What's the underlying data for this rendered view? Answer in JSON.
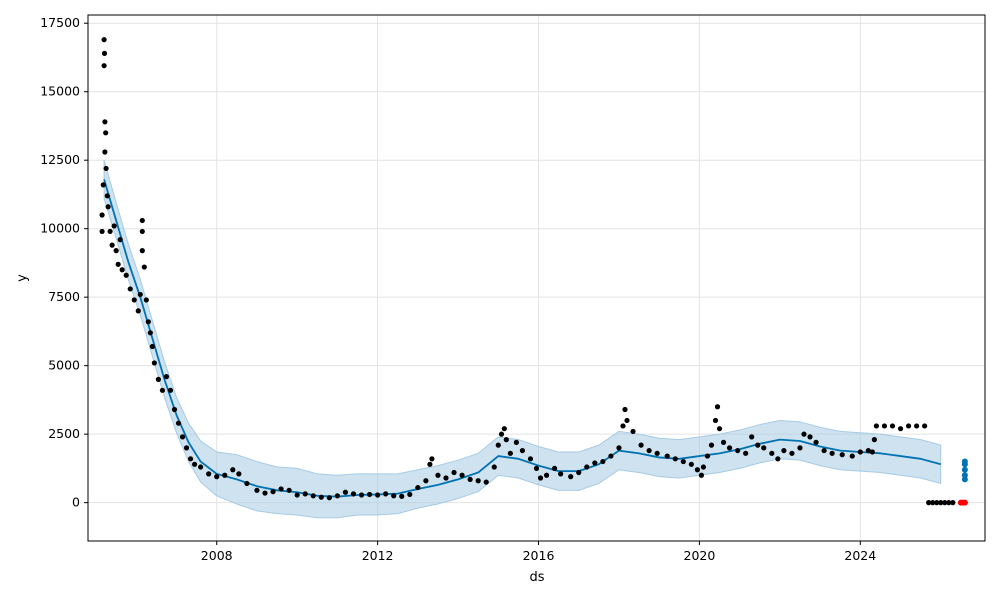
{
  "chart_data": {
    "type": "line",
    "title": "",
    "xlabel": "ds",
    "ylabel": "y",
    "xlim": [
      2004.8,
      2027.1
    ],
    "ylim": [
      -1400,
      17800
    ],
    "x_ticks": [
      2008,
      2012,
      2016,
      2020,
      2024
    ],
    "x_tick_labels": [
      "2008",
      "2012",
      "2016",
      "2020",
      "2024"
    ],
    "y_ticks": [
      0,
      2500,
      5000,
      7500,
      10000,
      12500,
      15000,
      17500
    ],
    "y_tick_labels": [
      "0",
      "2500",
      "5000",
      "7500",
      "10000",
      "12500",
      "15000",
      "17500"
    ],
    "grid": true,
    "colors": {
      "forecast": "#0072B2",
      "band": "#A6CBE3",
      "points": "#000000",
      "highlight": "#FF0000"
    },
    "series": [
      {
        "kind": "forecast-line",
        "points": [
          [
            2005.2,
            11800
          ],
          [
            2005.5,
            10300
          ],
          [
            2005.8,
            8800
          ],
          [
            2006.1,
            7500
          ],
          [
            2006.4,
            6000
          ],
          [
            2006.7,
            4500
          ],
          [
            2007.0,
            3200
          ],
          [
            2007.3,
            2200
          ],
          [
            2007.6,
            1500
          ],
          [
            2008.0,
            1050
          ],
          [
            2008.5,
            850
          ],
          [
            2009.0,
            600
          ],
          [
            2009.5,
            450
          ],
          [
            2010.0,
            380
          ],
          [
            2010.5,
            250
          ],
          [
            2011.0,
            220
          ],
          [
            2011.5,
            280
          ],
          [
            2012.0,
            300
          ],
          [
            2012.5,
            330
          ],
          [
            2013.0,
            500
          ],
          [
            2013.5,
            650
          ],
          [
            2014.0,
            850
          ],
          [
            2014.5,
            1100
          ],
          [
            2015.0,
            1700
          ],
          [
            2015.5,
            1600
          ],
          [
            2016.0,
            1350
          ],
          [
            2016.5,
            1150
          ],
          [
            2017.0,
            1150
          ],
          [
            2017.5,
            1400
          ],
          [
            2018.0,
            1900
          ],
          [
            2018.5,
            1800
          ],
          [
            2019.0,
            1650
          ],
          [
            2019.5,
            1600
          ],
          [
            2020.0,
            1700
          ],
          [
            2020.5,
            1800
          ],
          [
            2021.0,
            1950
          ],
          [
            2021.5,
            2150
          ],
          [
            2022.0,
            2300
          ],
          [
            2022.5,
            2250
          ],
          [
            2023.0,
            2050
          ],
          [
            2023.5,
            1900
          ],
          [
            2024.0,
            1850
          ],
          [
            2024.5,
            1800
          ],
          [
            2025.0,
            1700
          ],
          [
            2025.5,
            1600
          ],
          [
            2026.0,
            1400
          ]
        ]
      },
      {
        "kind": "uncertainty-band",
        "points": [
          [
            2005.2,
            11100,
            12500
          ],
          [
            2005.5,
            9650,
            10950
          ],
          [
            2005.8,
            8150,
            9450
          ],
          [
            2006.1,
            6850,
            8150
          ],
          [
            2006.4,
            5350,
            6650
          ],
          [
            2006.7,
            3850,
            5150
          ],
          [
            2007.0,
            2550,
            3850
          ],
          [
            2007.3,
            1500,
            2900
          ],
          [
            2007.6,
            750,
            2250
          ],
          [
            2008.0,
            250,
            1850
          ],
          [
            2008.5,
            -50,
            1750
          ],
          [
            2009.0,
            -300,
            1500
          ],
          [
            2009.5,
            -400,
            1300
          ],
          [
            2010.0,
            -450,
            1250
          ],
          [
            2010.5,
            -550,
            1050
          ],
          [
            2011.0,
            -550,
            1000
          ],
          [
            2011.5,
            -450,
            1050
          ],
          [
            2012.0,
            -450,
            1050
          ],
          [
            2012.5,
            -400,
            1050
          ],
          [
            2013.0,
            -200,
            1200
          ],
          [
            2013.5,
            -50,
            1350
          ],
          [
            2014.0,
            150,
            1550
          ],
          [
            2014.5,
            400,
            1800
          ],
          [
            2015.0,
            1000,
            2400
          ],
          [
            2015.5,
            900,
            2300
          ],
          [
            2016.0,
            650,
            2050
          ],
          [
            2016.5,
            450,
            1850
          ],
          [
            2017.0,
            450,
            1850
          ],
          [
            2017.5,
            700,
            2100
          ],
          [
            2018.0,
            1200,
            2600
          ],
          [
            2018.5,
            1100,
            2500
          ],
          [
            2019.0,
            950,
            2350
          ],
          [
            2019.5,
            900,
            2300
          ],
          [
            2020.0,
            1000,
            2400
          ],
          [
            2020.5,
            1100,
            2500
          ],
          [
            2021.0,
            1250,
            2650
          ],
          [
            2021.5,
            1450,
            2850
          ],
          [
            2022.0,
            1600,
            3000
          ],
          [
            2022.5,
            1550,
            2950
          ],
          [
            2023.0,
            1350,
            2750
          ],
          [
            2023.5,
            1200,
            2600
          ],
          [
            2024.0,
            1150,
            2550
          ],
          [
            2024.5,
            1100,
            2500
          ],
          [
            2025.0,
            1000,
            2400
          ],
          [
            2025.5,
            900,
            2300
          ],
          [
            2026.0,
            700,
            2100
          ]
        ]
      },
      {
        "kind": "observed",
        "points": [
          [
            2005.2,
            16900
          ],
          [
            2005.21,
            16400
          ],
          [
            2005.2,
            15950
          ],
          [
            2005.22,
            13900
          ],
          [
            2005.24,
            13500
          ],
          [
            2005.22,
            12800
          ],
          [
            2005.18,
            11600
          ],
          [
            2005.25,
            12200
          ],
          [
            2005.28,
            11200
          ],
          [
            2005.15,
            10500
          ],
          [
            2005.15,
            9900
          ],
          [
            2005.3,
            10800
          ],
          [
            2005.35,
            9900
          ],
          [
            2005.4,
            9400
          ],
          [
            2005.45,
            10100
          ],
          [
            2005.5,
            9200
          ],
          [
            2005.55,
            8700
          ],
          [
            2005.6,
            9600
          ],
          [
            2005.65,
            8500
          ],
          [
            2005.75,
            8300
          ],
          [
            2005.85,
            7800
          ],
          [
            2005.95,
            7400
          ],
          [
            2006.05,
            7000
          ],
          [
            2006.1,
            7600
          ],
          [
            2006.15,
            10300
          ],
          [
            2006.15,
            9900
          ],
          [
            2006.15,
            9200
          ],
          [
            2006.2,
            8600
          ],
          [
            2006.25,
            7400
          ],
          [
            2006.3,
            6600
          ],
          [
            2006.35,
            6200
          ],
          [
            2006.4,
            5700
          ],
          [
            2006.45,
            5100
          ],
          [
            2006.55,
            4500
          ],
          [
            2006.65,
            4100
          ],
          [
            2006.75,
            4600
          ],
          [
            2006.85,
            4100
          ],
          [
            2006.95,
            3400
          ],
          [
            2007.05,
            2900
          ],
          [
            2007.15,
            2400
          ],
          [
            2007.25,
            2000
          ],
          [
            2007.35,
            1600
          ],
          [
            2007.45,
            1400
          ],
          [
            2007.6,
            1300
          ],
          [
            2007.8,
            1050
          ],
          [
            2008.0,
            950
          ],
          [
            2008.2,
            1000
          ],
          [
            2008.4,
            1200
          ],
          [
            2008.55,
            1050
          ],
          [
            2008.75,
            700
          ],
          [
            2009.0,
            450
          ],
          [
            2009.2,
            350
          ],
          [
            2009.4,
            400
          ],
          [
            2009.6,
            500
          ],
          [
            2009.8,
            450
          ],
          [
            2010.0,
            280
          ],
          [
            2010.2,
            320
          ],
          [
            2010.4,
            250
          ],
          [
            2010.6,
            200
          ],
          [
            2010.8,
            180
          ],
          [
            2011.0,
            250
          ],
          [
            2011.2,
            380
          ],
          [
            2011.4,
            320
          ],
          [
            2011.6,
            280
          ],
          [
            2011.8,
            300
          ],
          [
            2012.0,
            280
          ],
          [
            2012.2,
            320
          ],
          [
            2012.4,
            250
          ],
          [
            2012.6,
            230
          ],
          [
            2012.8,
            300
          ],
          [
            2013.0,
            550
          ],
          [
            2013.2,
            800
          ],
          [
            2013.3,
            1400
          ],
          [
            2013.35,
            1600
          ],
          [
            2013.5,
            1000
          ],
          [
            2013.7,
            900
          ],
          [
            2013.9,
            1100
          ],
          [
            2014.1,
            1000
          ],
          [
            2014.3,
            850
          ],
          [
            2014.5,
            800
          ],
          [
            2014.7,
            750
          ],
          [
            2014.9,
            1300
          ],
          [
            2015.0,
            2100
          ],
          [
            2015.08,
            2500
          ],
          [
            2015.15,
            2700
          ],
          [
            2015.2,
            2300
          ],
          [
            2015.3,
            1800
          ],
          [
            2015.45,
            2200
          ],
          [
            2015.6,
            1900
          ],
          [
            2015.8,
            1600
          ],
          [
            2015.95,
            1250
          ],
          [
            2016.05,
            900
          ],
          [
            2016.2,
            1000
          ],
          [
            2016.4,
            1250
          ],
          [
            2016.55,
            1050
          ],
          [
            2016.8,
            950
          ],
          [
            2017.0,
            1100
          ],
          [
            2017.2,
            1300
          ],
          [
            2017.4,
            1450
          ],
          [
            2017.6,
            1500
          ],
          [
            2017.8,
            1700
          ],
          [
            2018.0,
            2000
          ],
          [
            2018.1,
            2800
          ],
          [
            2018.15,
            3400
          ],
          [
            2018.2,
            3000
          ],
          [
            2018.35,
            2600
          ],
          [
            2018.55,
            2100
          ],
          [
            2018.75,
            1900
          ],
          [
            2018.95,
            1800
          ],
          [
            2019.2,
            1700
          ],
          [
            2019.4,
            1600
          ],
          [
            2019.6,
            1500
          ],
          [
            2019.8,
            1400
          ],
          [
            2019.95,
            1200
          ],
          [
            2020.05,
            1000
          ],
          [
            2020.1,
            1300
          ],
          [
            2020.2,
            1700
          ],
          [
            2020.3,
            2100
          ],
          [
            2020.4,
            3000
          ],
          [
            2020.45,
            3500
          ],
          [
            2020.5,
            2700
          ],
          [
            2020.6,
            2200
          ],
          [
            2020.75,
            2000
          ],
          [
            2020.95,
            1900
          ],
          [
            2021.15,
            1800
          ],
          [
            2021.3,
            2400
          ],
          [
            2021.45,
            2100
          ],
          [
            2021.6,
            2000
          ],
          [
            2021.8,
            1800
          ],
          [
            2021.95,
            1600
          ],
          [
            2022.1,
            1900
          ],
          [
            2022.3,
            1800
          ],
          [
            2022.5,
            2000
          ],
          [
            2022.6,
            2500
          ],
          [
            2022.75,
            2400
          ],
          [
            2022.9,
            2200
          ],
          [
            2023.1,
            1900
          ],
          [
            2023.3,
            1800
          ],
          [
            2023.55,
            1750
          ],
          [
            2023.8,
            1700
          ],
          [
            2024.0,
            1850
          ],
          [
            2024.2,
            1900
          ],
          [
            2024.3,
            1850
          ],
          [
            2024.35,
            2300
          ],
          [
            2024.4,
            2800
          ],
          [
            2024.6,
            2800
          ],
          [
            2024.8,
            2800
          ],
          [
            2025.0,
            2700
          ],
          [
            2025.2,
            2800
          ],
          [
            2025.4,
            2800
          ],
          [
            2025.6,
            2800
          ],
          [
            2025.7,
            0
          ],
          [
            2025.8,
            0
          ],
          [
            2025.9,
            0
          ],
          [
            2026.0,
            0
          ],
          [
            2026.1,
            0
          ],
          [
            2026.2,
            0
          ],
          [
            2026.3,
            0
          ]
        ]
      },
      {
        "kind": "highlight",
        "points": [
          [
            2026.5,
            0
          ],
          [
            2026.55,
            0
          ],
          [
            2026.6,
            0
          ]
        ]
      },
      {
        "kind": "forecast-tail",
        "points": [
          [
            2026.6,
            1500
          ],
          [
            2026.6,
            1400
          ],
          [
            2026.6,
            1200
          ],
          [
            2026.6,
            1000
          ],
          [
            2026.6,
            850
          ]
        ]
      }
    ]
  }
}
